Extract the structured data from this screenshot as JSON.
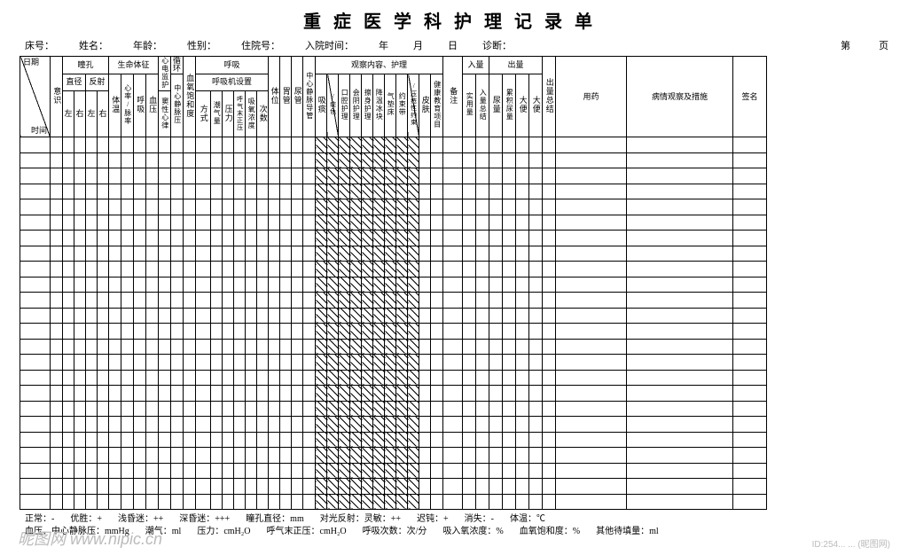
{
  "title": "重症医学科护理记录单",
  "info": {
    "bed": "床号：",
    "name": "姓名：",
    "age": "年龄：",
    "sex": "性别：",
    "hosp_no": "住院号：",
    "admit_time": "入院时间：",
    "year": "年",
    "month": "月",
    "day": "日",
    "diag": "诊断：",
    "page_pre": "第",
    "page_suf": "页"
  },
  "headers": {
    "datetime_tl": "日期",
    "datetime_br": "时间",
    "conscious": "意识",
    "pupil": "瞳孔",
    "vital": "生命体征",
    "ecg": "心电监护",
    "circ": "循环",
    "resp": "呼吸",
    "obs_care": "观察内容、护理",
    "intake_h": "入量",
    "output_h": "出量",
    "medication": "用药",
    "condition": "病情观察及措施",
    "sign": "签名",
    "diam": "直径",
    "reflex": "反射",
    "L": "左",
    "R": "右",
    "temp": "体温",
    "pulse": "心率/脉率",
    "rr": "呼吸",
    "bp": "血压",
    "sinus": "窦性心律",
    "cvp": "中心静脉压",
    "spo2": "血氧饱和度",
    "vent_set": "呼吸机设置",
    "mode": "方式",
    "tv": "潮气量",
    "pressure": "压力",
    "peep": "呼气末正压",
    "fio2": "吸氧浓度",
    "vent_rate": "次数",
    "position": "体位",
    "gi": "胃管",
    "urine": "尿管",
    "cvc": "中心静脉导管",
    "suction": "吸痰",
    "sput_char": "/痰色",
    "oral": "口腔护理",
    "perineal": "会阴护理",
    "bath": "擦身护理",
    "cold": "降温冰块",
    "airbed": "气垫床",
    "restraint": "约束带",
    "risk": "/压疮性约束",
    "skin": "皮肤",
    "edu": "健康教育项目",
    "note": "备注",
    "intake_act": "实用量",
    "intake_tot": "入量总结",
    "urine_amt": "尿量",
    "drain": "累积尿量",
    "stool": "大便",
    "out_tot": "出量总结"
  },
  "footer": {
    "l1": [
      "正常：-",
      "优胜：+",
      "浅昏迷：++",
      "深昏迷：+++",
      "瞳孔直径：mm",
      "对光反射：灵敏：++",
      "迟钝：+",
      "消失：-",
      "体温：℃"
    ],
    "l2": [
      "血压、中心静脉压：mmHg",
      "潮气：ml",
      "压力：cmH₂O",
      "呼气末正压：cmH₂O",
      "呼吸次数：次/分",
      "吸入氧浓度：%",
      "血氧饱和度：%",
      "其他待填量：ml"
    ]
  },
  "watermark": "昵图网 www.nipic.cn",
  "wm_right": "ID:254... ... (昵图网)"
}
